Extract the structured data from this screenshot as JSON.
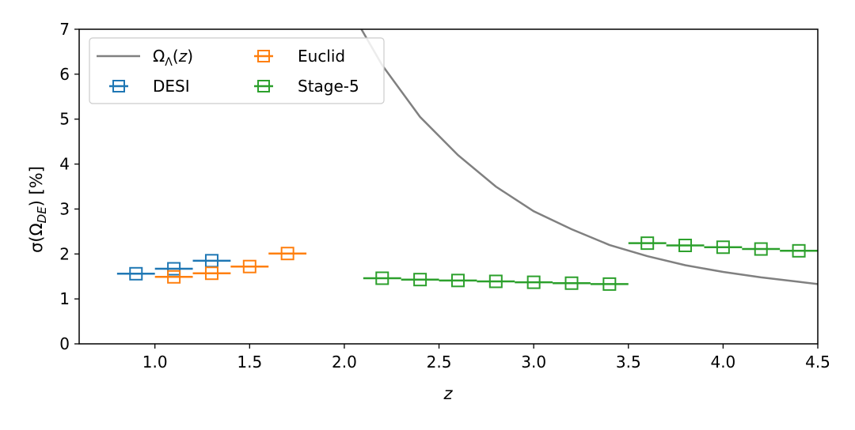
{
  "chart_data": {
    "type": "scatter",
    "title": "",
    "xlabel": "z",
    "ylabel": "σ(Ω_DE) [%]",
    "xlim": [
      0.6,
      4.5
    ],
    "ylim": [
      0,
      7
    ],
    "xticks": [
      "1.0",
      "1.5",
      "2.0",
      "2.5",
      "3.0",
      "3.5",
      "4.0",
      "4.5"
    ],
    "yticks": [
      "0",
      "1",
      "2",
      "3",
      "4",
      "5",
      "6",
      "7"
    ],
    "grid": false,
    "legend_placement": "top-left",
    "curve": {
      "name": "Ω_Λ(z)",
      "color": "#808080",
      "x": [
        2.09,
        2.2,
        2.4,
        2.6,
        2.8,
        3.0,
        3.2,
        3.4,
        3.6,
        3.8,
        4.0,
        4.2,
        4.4,
        4.5
      ],
      "y": [
        7.0,
        6.2,
        5.05,
        4.2,
        3.5,
        2.95,
        2.55,
        2.2,
        1.95,
        1.75,
        1.6,
        1.48,
        1.38,
        1.33
      ]
    },
    "series": [
      {
        "name": "DESI",
        "color": "#1f77b4",
        "x": [
          0.9,
          1.1,
          1.3
        ],
        "y": [
          1.56,
          1.67,
          1.85
        ],
        "xerr": [
          0.1,
          0.1,
          0.1
        ]
      },
      {
        "name": "Euclid",
        "color": "#ff7f0e",
        "x": [
          1.1,
          1.3,
          1.5,
          1.7
        ],
        "y": [
          1.49,
          1.57,
          1.72,
          2.01
        ],
        "xerr": [
          0.1,
          0.1,
          0.1,
          0.1
        ]
      },
      {
        "name": "Stage-5",
        "color": "#2ca02c",
        "x": [
          2.2,
          2.4,
          2.6,
          2.8,
          3.0,
          3.2,
          3.4,
          3.6,
          3.8,
          4.0,
          4.2,
          4.4
        ],
        "y": [
          1.46,
          1.43,
          1.41,
          1.39,
          1.37,
          1.35,
          1.33,
          2.24,
          2.19,
          2.15,
          2.11,
          2.07
        ],
        "xerr": [
          0.1,
          0.1,
          0.1,
          0.1,
          0.1,
          0.1,
          0.1,
          0.1,
          0.1,
          0.1,
          0.1,
          0.1
        ]
      }
    ]
  }
}
